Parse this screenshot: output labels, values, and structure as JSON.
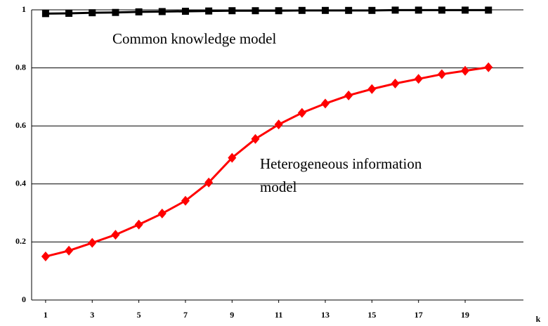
{
  "chart_data": {
    "type": "line",
    "x": [
      1,
      2,
      3,
      4,
      5,
      6,
      7,
      8,
      9,
      10,
      11,
      12,
      13,
      14,
      15,
      16,
      17,
      18,
      19,
      20
    ],
    "series": [
      {
        "color": "#000000",
        "marker": "square",
        "values": [
          0.987,
          0.988,
          0.99,
          0.991,
          0.993,
          0.994,
          0.995,
          0.996,
          0.997,
          0.997,
          0.997,
          0.998,
          0.998,
          0.998,
          0.998,
          0.999,
          0.999,
          0.999,
          0.999,
          0.999
        ]
      },
      {
        "color": "#ff0000",
        "marker": "diamond",
        "values": [
          0.15,
          0.17,
          0.197,
          0.225,
          0.26,
          0.298,
          0.342,
          0.405,
          0.49,
          0.555,
          0.605,
          0.645,
          0.677,
          0.705,
          0.727,
          0.746,
          0.762,
          0.778,
          0.79,
          0.802
        ]
      }
    ],
    "xlabel": "k",
    "xlim": [
      0.4,
      21.5
    ],
    "xticks": [
      1,
      3,
      5,
      7,
      9,
      11,
      13,
      15,
      17,
      19
    ],
    "ylim": [
      0,
      1
    ],
    "yticks": [
      0,
      0.2,
      0.4,
      0.6,
      0.8,
      1
    ],
    "grid": true,
    "annotations": [
      "Common knowledge model",
      "Heterogeneous information",
      "model"
    ]
  }
}
